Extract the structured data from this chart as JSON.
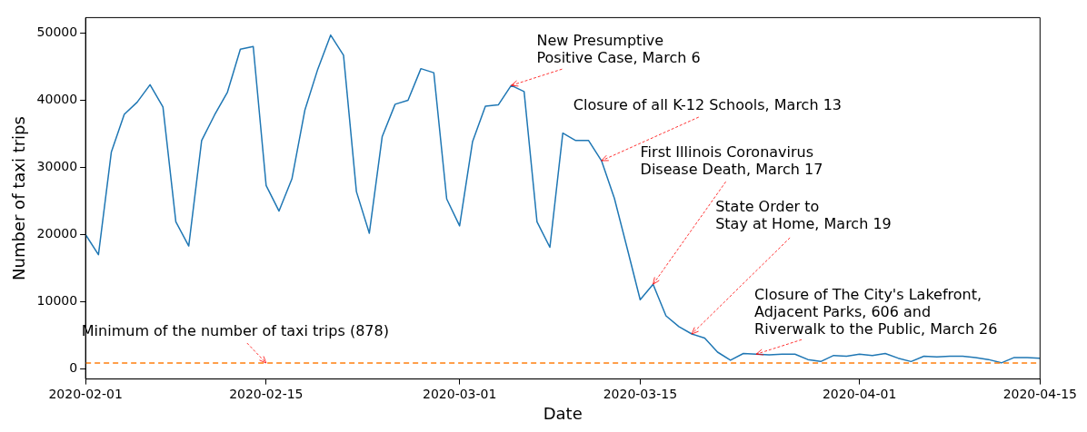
{
  "chart_data": {
    "type": "line",
    "xlabel": "Date",
    "ylabel": "Number of taxi trips",
    "x": [
      "2020-02-01",
      "2020-02-02",
      "2020-02-03",
      "2020-02-04",
      "2020-02-05",
      "2020-02-06",
      "2020-02-07",
      "2020-02-08",
      "2020-02-09",
      "2020-02-10",
      "2020-02-11",
      "2020-02-12",
      "2020-02-13",
      "2020-02-14",
      "2020-02-15",
      "2020-02-16",
      "2020-02-17",
      "2020-02-18",
      "2020-02-19",
      "2020-02-20",
      "2020-02-21",
      "2020-02-22",
      "2020-02-23",
      "2020-02-24",
      "2020-02-25",
      "2020-02-26",
      "2020-02-27",
      "2020-02-28",
      "2020-02-29",
      "2020-03-01",
      "2020-03-02",
      "2020-03-03",
      "2020-03-04",
      "2020-03-05",
      "2020-03-06",
      "2020-03-07",
      "2020-03-08",
      "2020-03-09",
      "2020-03-10",
      "2020-03-11",
      "2020-03-12",
      "2020-03-13",
      "2020-03-14",
      "2020-03-15",
      "2020-03-16",
      "2020-03-17",
      "2020-03-18",
      "2020-03-19",
      "2020-03-20",
      "2020-03-21",
      "2020-03-22",
      "2020-03-23",
      "2020-03-24",
      "2020-03-25",
      "2020-03-26",
      "2020-03-27",
      "2020-03-28",
      "2020-03-29",
      "2020-03-30",
      "2020-03-31",
      "2020-04-01",
      "2020-04-02",
      "2020-04-03",
      "2020-04-04",
      "2020-04-05",
      "2020-04-06",
      "2020-04-07",
      "2020-04-08",
      "2020-04-09",
      "2020-04-10",
      "2020-04-11",
      "2020-04-12",
      "2020-04-13",
      "2020-04-14",
      "2020-04-15"
    ],
    "series": [
      {
        "color": "#1f77b4",
        "values": [
          20000,
          17000,
          32300,
          37900,
          39700,
          42300,
          39000,
          21900,
          18300,
          34000,
          37800,
          41200,
          47600,
          48000,
          27300,
          23500,
          28300,
          38500,
          44600,
          49700,
          46700,
          26400,
          20200,
          34600,
          39400,
          40000,
          44700,
          44100,
          25300,
          21300,
          33800,
          39100,
          39300,
          42200,
          41300,
          21900,
          18100,
          35100,
          34000,
          34000,
          31000,
          25400,
          17900,
          10300,
          12600,
          7900,
          6300,
          5200,
          4600,
          2500,
          1300,
          2300,
          2200,
          2100,
          2200,
          2200,
          1400,
          1100,
          2000,
          1900,
          2200,
          2000,
          2300,
          1600,
          1100,
          1900,
          1800,
          1900,
          1900,
          1700,
          1400,
          900,
          1700,
          1700,
          1600
        ]
      }
    ],
    "ref_lines": [
      {
        "axis": "y",
        "value": 878,
        "color": "#ff7f0e",
        "line_style": "dashed"
      }
    ],
    "annotations": [
      {
        "text": "New Presumptive\nPositive Case, March 6",
        "x": "2020-03-05",
        "y": 42200
      },
      {
        "text": "Closure of all K-12 Schools, March 13",
        "x": "2020-03-12",
        "y": 31000
      },
      {
        "text": "First Illinois Coronavirus\nDisease Death, March 17",
        "x": "2020-03-16",
        "y": 12600
      },
      {
        "text": "State Order to\nStay at Home, March 19",
        "x": "2020-03-19",
        "y": 5200
      },
      {
        "text": "Closure of The City's Lakefront,\nAdjacent Parks, 606 and\nRiverwalk to the Public, March 26",
        "x": "2020-03-24",
        "y": 2200
      },
      {
        "text": "Minimum of the number of taxi trips (878)",
        "x": "2020-02-15",
        "y": 878
      }
    ],
    "xlim": [
      "2020-02-01",
      "2020-04-15"
    ],
    "xticks": [
      "2020-02-01",
      "2020-02-15",
      "2020-03-01",
      "2020-03-15",
      "2020-04-01",
      "2020-04-15"
    ],
    "ylim": [
      -1500,
      52300
    ],
    "yticks": [
      0,
      10000,
      20000,
      30000,
      40000,
      50000
    ],
    "grid": false,
    "legend": false,
    "marker": "none",
    "line_style": "solid"
  }
}
